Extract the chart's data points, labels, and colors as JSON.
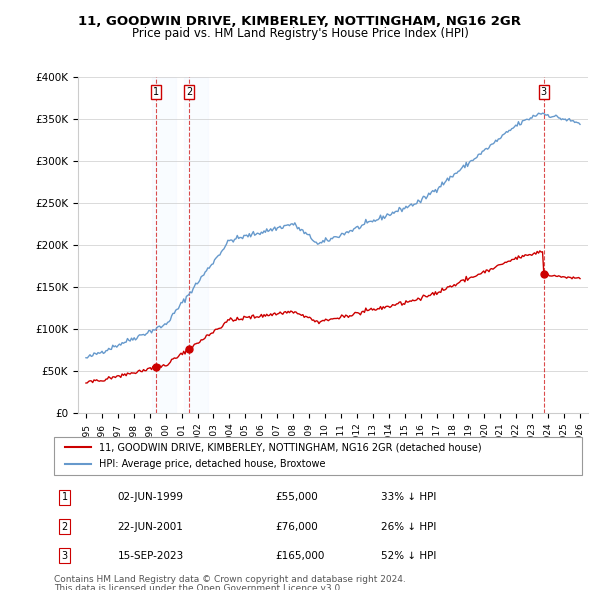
{
  "title": "11, GOODWIN DRIVE, KIMBERLEY, NOTTINGHAM, NG16 2GR",
  "subtitle": "Price paid vs. HM Land Registry's House Price Index (HPI)",
  "legend_line1": "11, GOODWIN DRIVE, KIMBERLEY, NOTTINGHAM, NG16 2GR (detached house)",
  "legend_line2": "HPI: Average price, detached house, Broxtowe",
  "table_rows": [
    [
      "1",
      "02-JUN-1999",
      "£55,000",
      "33% ↓ HPI"
    ],
    [
      "2",
      "22-JUN-2001",
      "£76,000",
      "26% ↓ HPI"
    ],
    [
      "3",
      "15-SEP-2023",
      "£165,000",
      "52% ↓ HPI"
    ]
  ],
  "footnote1": "Contains HM Land Registry data © Crown copyright and database right 2024.",
  "footnote2": "This data is licensed under the Open Government Licence v3.0.",
  "hpi_color": "#6699cc",
  "price_color": "#cc0000",
  "marker_color": "#cc0000",
  "annotation_bg": "#ddeeff",
  "ylim": [
    0,
    400000
  ],
  "yticks": [
    0,
    50000,
    100000,
    150000,
    200000,
    250000,
    300000,
    350000,
    400000
  ],
  "sale_points": [
    {
      "year": 1999.42,
      "price": 55000,
      "label": "1"
    },
    {
      "year": 2001.47,
      "price": 76000,
      "label": "2"
    },
    {
      "year": 2023.71,
      "price": 165000,
      "label": "3"
    }
  ]
}
